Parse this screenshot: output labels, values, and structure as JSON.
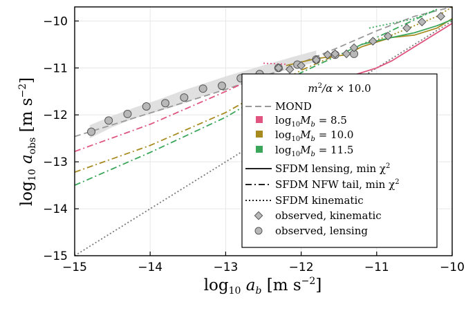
{
  "chart_data": {
    "type": "line",
    "xlabel": "log₁₀ a_b [m s⁻²]",
    "ylabel": "log₁₀ a_obs [m s⁻²]",
    "xlim": [
      -15,
      -10
    ],
    "ylim": [
      -15,
      -9.7
    ],
    "x_ticks": [
      -15,
      -14,
      -13,
      -12,
      -11,
      -10
    ],
    "y_ticks": [
      -15,
      -14,
      -13,
      -12,
      -11,
      -10
    ],
    "x_tick_labels": [
      "−15",
      "−14",
      "−13",
      "−12",
      "−11",
      "−10"
    ],
    "y_tick_labels": [
      "−15",
      "−14",
      "−13",
      "−12",
      "−11",
      "−10"
    ],
    "grid": true,
    "legend": {
      "position": "bottom-right",
      "title": "m²/α × 10.0",
      "entries": [
        "MOND",
        "log₁₀ M_b = 8.5",
        "log₁₀ M_b = 10.0",
        "log₁₀ M_b = 11.5",
        "SFDM lensing, min χ²",
        "SFDM NFW tail, min χ²",
        "SFDM kinematic",
        "observed,  kinematic",
        "observed,  lensing"
      ]
    },
    "colors": {
      "mond": "#999999",
      "mb85": "#e0547f",
      "mb100": "#a88b1f",
      "mb115": "#3aa65a",
      "identity": "#777777",
      "markers": "#b8b8b8",
      "band": "#dddddd"
    },
    "series": [
      {
        "name": "MOND",
        "style": "dashed",
        "color": "mond",
        "x": [
          -15,
          -14.5,
          -14,
          -13.5,
          -13,
          -12.5,
          -12,
          -11.5,
          -11,
          -10.5,
          -10
        ],
        "y": [
          -12.46,
          -12.21,
          -11.96,
          -11.71,
          -11.46,
          -11.18,
          -10.89,
          -10.56,
          -10.21,
          -9.9,
          -9.7
        ]
      },
      {
        "name": "Identity",
        "style": "dotted",
        "color": "identity",
        "x": [
          -15,
          -10
        ],
        "y": [
          -15,
          -10
        ]
      },
      {
        "name": "8.5 NFW tail",
        "style": "dashdot",
        "color": "mb85",
        "x": [
          -15,
          -14,
          -13,
          -12.8
        ],
        "y": [
          -12.78,
          -12.2,
          -11.5,
          -11.35
        ]
      },
      {
        "name": "8.5 kinematic",
        "style": "dotted",
        "color": "mb85",
        "x": [
          -12.5,
          -12.2
        ],
        "y": [
          -10.9,
          -10.92
        ]
      },
      {
        "name": "8.5 lensing",
        "style": "solid",
        "color": "mb85",
        "x": [
          -12.5,
          -12,
          -11.5,
          -11.2,
          -11,
          -10.8,
          -10.5,
          -10.2,
          -10
        ],
        "y": [
          -11.55,
          -11.4,
          -11.25,
          -11.1,
          -11.0,
          -10.85,
          -10.55,
          -10.25,
          -10.05
        ]
      },
      {
        "name": "10.0 NFW tail",
        "style": "dashdot",
        "color": "mb100",
        "x": [
          -15,
          -14,
          -13,
          -12,
          -11.5
        ],
        "y": [
          -13.22,
          -12.65,
          -11.95,
          -11.05,
          -10.7
        ]
      },
      {
        "name": "10.0 kinematic",
        "style": "dotted",
        "color": "mb100",
        "x": [
          -11.2,
          -10.8,
          -10.5,
          -10.2,
          -10
        ],
        "y": [
          -10.5,
          -10.3,
          -10.1,
          -9.9,
          -9.7
        ]
      },
      {
        "name": "10.0 lensing",
        "style": "solid",
        "color": "mb100",
        "x": [
          -12.2,
          -11.8,
          -11.4,
          -11.2,
          -11,
          -10.8,
          -10.5,
          -10.2,
          -10
        ],
        "y": [
          -10.95,
          -10.8,
          -10.72,
          -10.55,
          -10.45,
          -10.35,
          -10.3,
          -10.15,
          -9.95
        ]
      },
      {
        "name": "11.5 NFW tail",
        "style": "dashdot",
        "color": "mb115",
        "x": [
          -15,
          -14,
          -13,
          -12,
          -11,
          -10.2
        ],
        "y": [
          -13.5,
          -12.8,
          -12.05,
          -11.1,
          -10.35,
          -9.75
        ]
      },
      {
        "name": "11.5 kinematic",
        "style": "dotted",
        "color": "mb115",
        "x": [
          -11.1,
          -10.8,
          -10.5,
          -10.2
        ],
        "y": [
          -10.15,
          -10.05,
          -9.95,
          -9.75
        ]
      },
      {
        "name": "11.5 lensing",
        "style": "solid",
        "color": "mb115",
        "x": [
          -11.2,
          -10.8,
          -10.5,
          -10.2,
          -10
        ],
        "y": [
          -10.5,
          -10.35,
          -10.25,
          -10.1,
          -9.97
        ]
      }
    ],
    "observed_kinematic": {
      "x": [
        -12.3,
        -12.15,
        -12.0,
        -11.8,
        -11.65,
        -11.55,
        -11.4,
        -11.3,
        -11.05,
        -10.85,
        -10.6,
        -10.4,
        -10.15
      ],
      "y": [
        -11.0,
        -11.03,
        -10.95,
        -10.83,
        -10.72,
        -10.7,
        -10.7,
        -10.57,
        -10.43,
        -10.32,
        -10.15,
        -10.02,
        -9.9
      ]
    },
    "observed_lensing": {
      "x": [
        -14.78,
        -14.55,
        -14.3,
        -14.05,
        -13.8,
        -13.55,
        -13.3,
        -13.05,
        -12.8,
        -12.55,
        -12.3,
        -12.05,
        -11.8,
        -11.55,
        -11.3
      ],
      "y": [
        -12.36,
        -12.12,
        -11.98,
        -11.82,
        -11.75,
        -11.63,
        -11.44,
        -11.38,
        -11.22,
        -11.13,
        -11.0,
        -10.93,
        -10.82,
        -10.72,
        -10.7
      ]
    },
    "lensing_band": {
      "x": [
        -14.8,
        -14.5,
        -14.2,
        -13.9,
        -13.6,
        -13.3,
        -13.0,
        -12.7,
        -12.4,
        -12.1,
        -11.8
      ],
      "lower": [
        -12.5,
        -12.26,
        -12.07,
        -11.93,
        -11.78,
        -11.6,
        -11.45,
        -11.3,
        -11.14,
        -11.0,
        -10.87
      ],
      "upper": [
        -12.22,
        -12.02,
        -11.84,
        -11.68,
        -11.5,
        -11.34,
        -11.18,
        -11.04,
        -10.9,
        -10.76,
        -10.63
      ]
    }
  }
}
